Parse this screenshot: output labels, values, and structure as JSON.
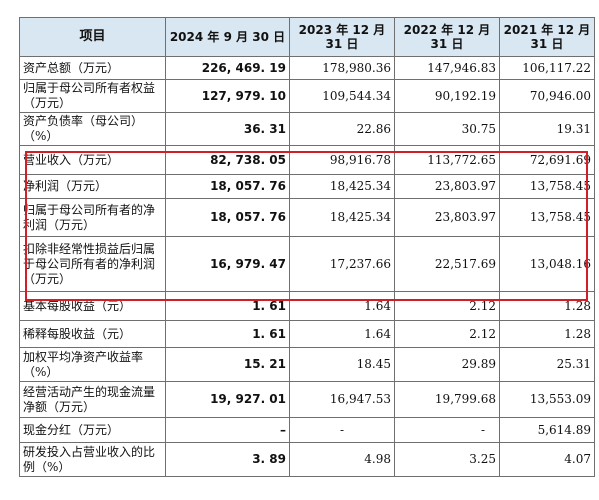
{
  "header": [
    "项目",
    "2024 年 9 月 30 日",
    "2023 年 12 月 31 日",
    "2022 年 12 月 31 日",
    "2021 年 12 月 31 日"
  ],
  "rows": [
    {
      "label": "资产总额（万元）",
      "v2024": "226, 469. 19",
      "v2023": "178,980.36",
      "v2022": "147,946.83",
      "v2021": "106,117.22"
    },
    {
      "label": "归属于母公司所有者权益（万元）",
      "v2024": "127, 979. 10",
      "v2023": "109,544.34",
      "v2022": "90,192.19",
      "v2021": "70,946.00"
    },
    {
      "label": "资产负债率（母公司）（%）",
      "v2024": "36. 31",
      "v2023": "22.86",
      "v2022": "30.75",
      "v2021": "19.31"
    },
    {
      "label": "营业收入（万元）",
      "v2024": "82, 738. 05",
      "v2023": "98,916.78",
      "v2022": "113,772.65",
      "v2021": "72,691.69"
    },
    {
      "label": "净利润（万元）",
      "v2024": "18, 057. 76",
      "v2023": "18,425.34",
      "v2022": "23,803.97",
      "v2021": "13,758.45"
    },
    {
      "label": "归属于母公司所有者的净利润（万元）",
      "v2024": "18, 057. 76",
      "v2023": "18,425.34",
      "v2022": "23,803.97",
      "v2021": "13,758.45"
    },
    {
      "label": "扣除非经常性损益后归属于母公司所有者的净利润（万元）",
      "v2024": "16, 979. 47",
      "v2023": "17,237.66",
      "v2022": "22,517.69",
      "v2021": "13,048.16"
    },
    {
      "label": "基本每股收益（元）",
      "v2024": "1. 61",
      "v2023": "1.64",
      "v2022": "2.12",
      "v2021": "1.28"
    },
    {
      "label": "稀释每股收益（元）",
      "v2024": "1. 61",
      "v2023": "1.64",
      "v2022": "2.12",
      "v2021": "1.28"
    },
    {
      "label": "加权平均净资产收益率（%）",
      "v2024": "15. 21",
      "v2023": "18.45",
      "v2022": "29.89",
      "v2021": "25.31"
    },
    {
      "label": "经营活动产生的现金流量净额（万元）",
      "v2024": "19, 927. 01",
      "v2023": "16,947.53",
      "v2022": "19,799.68",
      "v2021": "13,553.09"
    },
    {
      "label": "现金分红（万元）",
      "v2024": "–",
      "v2023": "-",
      "v2022": "-",
      "v2021": "5,614.89"
    },
    {
      "label": "研发投入占营业收入的比例（%）",
      "v2024": "3. 89",
      "v2023": "4.98",
      "v2022": "3.25",
      "v2021": "4.07"
    }
  ],
  "highlight_color": "#d21f26"
}
